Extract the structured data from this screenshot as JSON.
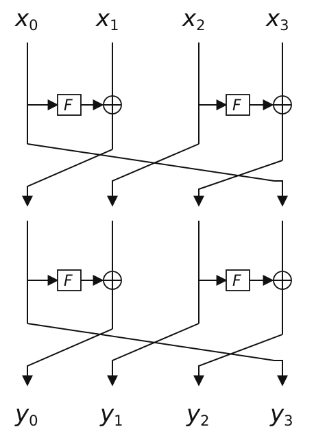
{
  "inputs": [
    {
      "base": "x",
      "sub": "0"
    },
    {
      "base": "x",
      "sub": "1"
    },
    {
      "base": "x",
      "sub": "2"
    },
    {
      "base": "x",
      "sub": "3"
    }
  ],
  "outputs": [
    {
      "base": "y",
      "sub": "0"
    },
    {
      "base": "y",
      "sub": "1"
    },
    {
      "base": "y",
      "sub": "2"
    },
    {
      "base": "y",
      "sub": "3"
    }
  ],
  "f_label": "F",
  "rounds": 2,
  "colors": {
    "line": "#111111",
    "background": "#ffffff"
  }
}
